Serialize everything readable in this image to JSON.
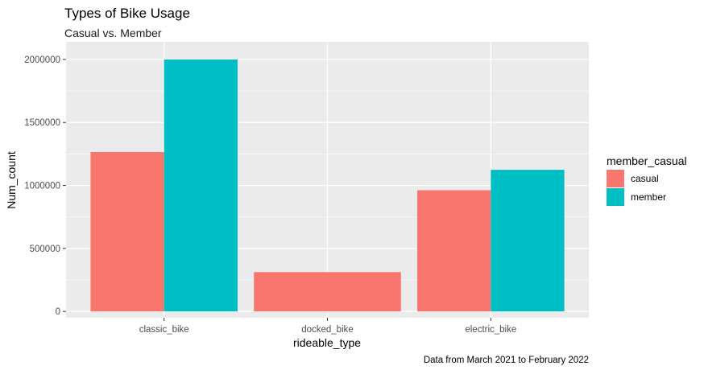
{
  "chart_data": {
    "type": "bar",
    "title": "Types of Bike Usage",
    "subtitle": "Casual vs. Member",
    "xlabel": "rideable_type",
    "ylabel": "Num_count",
    "caption": "Data from March 2021 to February 2022",
    "categories": [
      "classic_bike",
      "docked_bike",
      "electric_bike"
    ],
    "series": [
      {
        "name": "casual",
        "values": [
          1265000,
          312000,
          962000
        ],
        "color": "#F8766D"
      },
      {
        "name": "member",
        "values": [
          2000000,
          null,
          1124000
        ],
        "color": "#00BFC4"
      }
    ],
    "ylim": [
      -50000,
      2140000
    ],
    "yticks": [
      0,
      500000,
      1000000,
      1500000,
      2000000
    ],
    "ytick_labels": [
      "0",
      "500000",
      "1000000",
      "1500000",
      "2000000"
    ],
    "legend": {
      "title": "member_casual",
      "position": "right"
    },
    "grid": true,
    "panel_color": "#EBEBEB",
    "grid_color": "#FFFFFF"
  }
}
